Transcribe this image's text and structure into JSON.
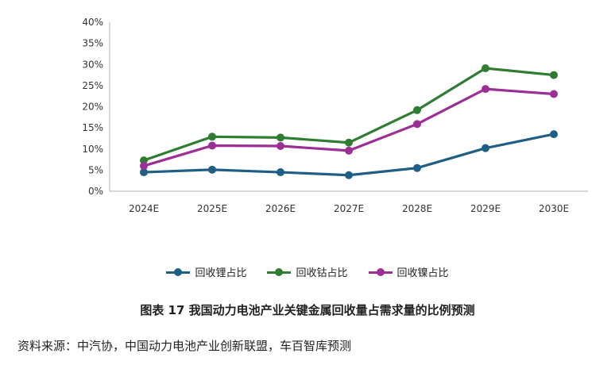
{
  "chart_data": {
    "type": "line",
    "categories": [
      "2024E",
      "2025E",
      "2026E",
      "2027E",
      "2028E",
      "2029E",
      "2030E"
    ],
    "series": [
      {
        "name": "回收锂占比",
        "color": "#1f5f85",
        "values": [
          4.5,
          5.1,
          4.5,
          3.8,
          5.5,
          10.2,
          13.5
        ]
      },
      {
        "name": "回收钴占比",
        "color": "#2e7d32",
        "values": [
          7.3,
          12.9,
          12.7,
          11.5,
          19.2,
          29.1,
          27.5
        ]
      },
      {
        "name": "回收镍占比",
        "color": "#9c2f96",
        "values": [
          6.0,
          10.8,
          10.7,
          9.6,
          15.9,
          24.2,
          23.0
        ]
      }
    ],
    "ylim": [
      0,
      40
    ],
    "yticks": [
      "0%",
      "5%",
      "10%",
      "15%",
      "20%",
      "25%",
      "30%",
      "35%",
      "40%"
    ],
    "ytick_values": [
      0,
      5,
      10,
      15,
      20,
      25,
      30,
      35,
      40
    ],
    "grid": false,
    "legend": "bottom"
  },
  "caption": "图表 17 我国动力电池产业关键金属回收量占需求量的比例预测",
  "source": "资料来源：中汽协，中国动力电池产业创新联盟，车百智库预测"
}
